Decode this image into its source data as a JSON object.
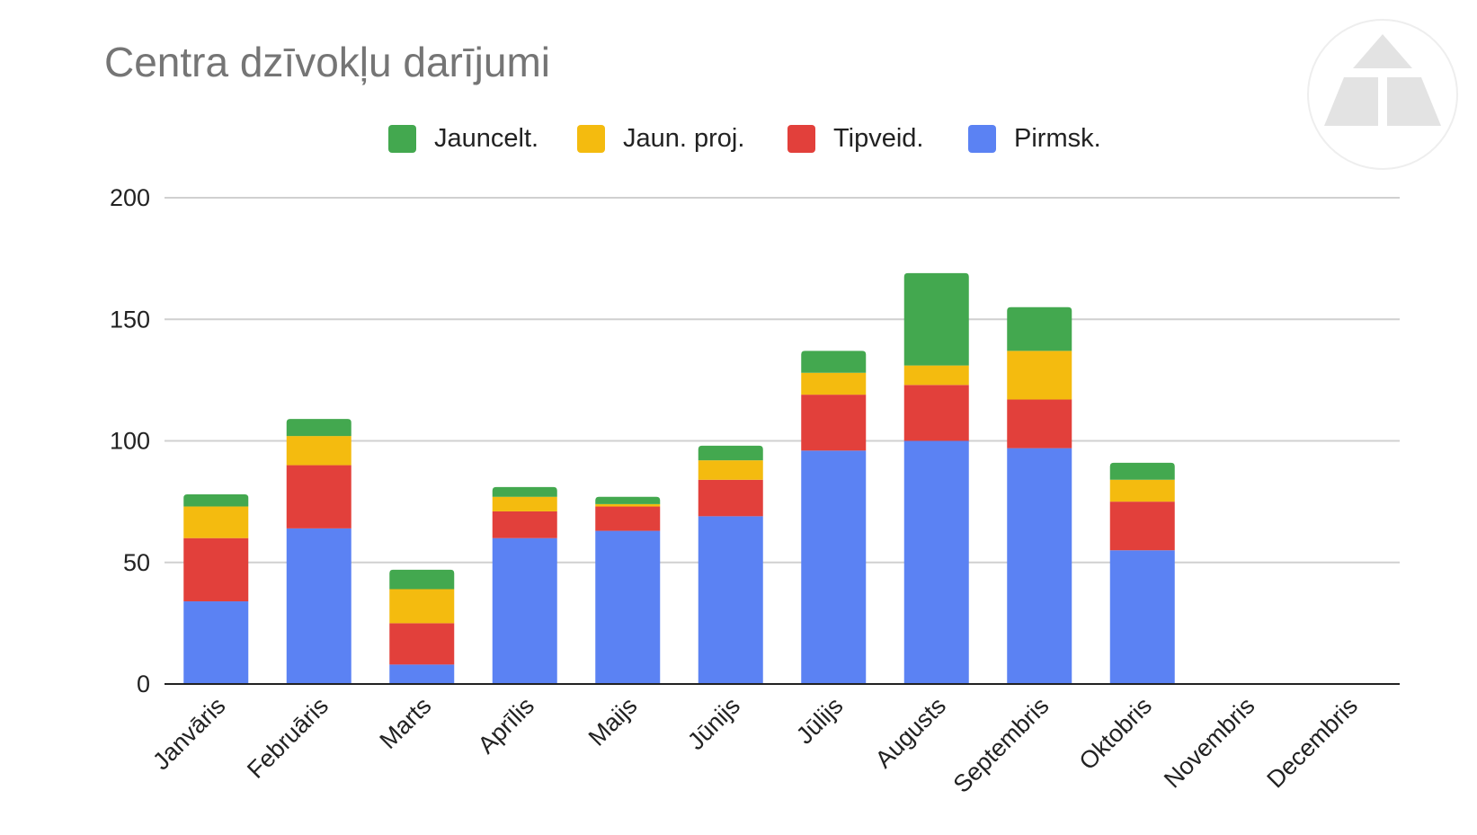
{
  "colors": {
    "jauncelt": "#43a84f",
    "jaun_proj": "#f4bb0f",
    "tipveid": "#e2403b",
    "pirmsk": "#5b82f3",
    "grid": "#d0d0d0",
    "axis": "#222222"
  },
  "chart_data": {
    "type": "bar",
    "stacked": true,
    "title": "Centra dzīvokļu darījumi",
    "xlabel": "",
    "ylabel": "",
    "ylim": [
      0,
      200
    ],
    "yticks": [
      0,
      50,
      100,
      150,
      200
    ],
    "grid": true,
    "legend_position": "top",
    "categories": [
      "Janvāris",
      "Februāris",
      "Marts",
      "Aprīlis",
      "Maijs",
      "Jūnijs",
      "Jūlijs",
      "Augusts",
      "Septembris",
      "Oktobris",
      "Novembris",
      "Decembris"
    ],
    "series": [
      {
        "name": "Pirmsk.",
        "values": [
          34,
          64,
          8,
          60,
          63,
          69,
          96,
          100,
          97,
          55,
          0,
          0
        ]
      },
      {
        "name": "Tipveid.",
        "values": [
          26,
          26,
          17,
          11,
          10,
          15,
          23,
          23,
          20,
          20,
          0,
          0
        ]
      },
      {
        "name": "Jaun. proj.",
        "values": [
          13,
          12,
          14,
          6,
          1,
          8,
          9,
          8,
          20,
          9,
          0,
          0
        ]
      },
      {
        "name": "Jauncelt.",
        "values": [
          5,
          7,
          8,
          4,
          3,
          6,
          9,
          38,
          18,
          7,
          0,
          0
        ]
      }
    ],
    "legend_order": [
      "Jauncelt.",
      "Jaun. proj.",
      "Tipveid.",
      "Pirmsk."
    ]
  }
}
